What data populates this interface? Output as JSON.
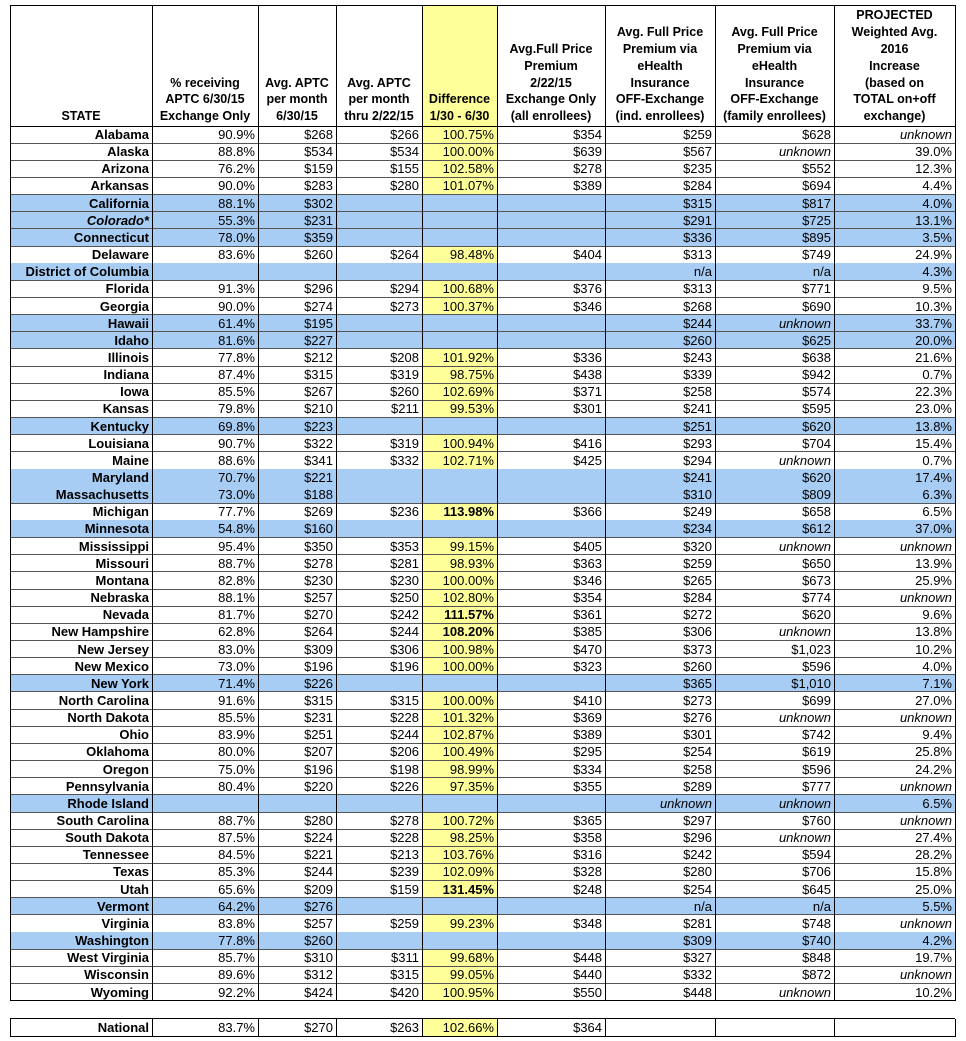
{
  "table": {
    "header": [
      [
        "STATE"
      ],
      [
        "% receiving",
        "APTC 6/30/15",
        "Exchange Only"
      ],
      [
        "Avg. APTC",
        "per month",
        "6/30/15"
      ],
      [
        "Avg. APTC",
        "per month",
        "thru 2/22/15"
      ],
      [
        "Difference",
        "1/30 - 6/30"
      ],
      [
        "Avg.Full Price",
        "Premium",
        "2/22/15",
        "Exchange Only",
        "(all enrollees)"
      ],
      [
        "Avg. Full Price",
        "Premium via",
        "eHealth",
        "Insurance",
        "OFF-Exchange",
        "(ind. enrollees)"
      ],
      [
        "Avg. Full Price",
        "Premium via",
        "eHealth",
        "Insurance",
        "OFF-Exchange",
        "(family enrollees)"
      ],
      [
        "PROJECTED",
        "Weighted Avg.",
        "2016",
        "Increase",
        "(based on",
        "TOTAL on+off",
        "exchange)"
      ]
    ],
    "rows": [
      {
        "cells": [
          "Alabama",
          "90.9%",
          "$268",
          "$266",
          "100.75%",
          "$354",
          "$259",
          "$628",
          {
            "text": "unknown",
            "italic": true
          }
        ]
      },
      {
        "cells": [
          "Alaska",
          "88.8%",
          "$534",
          "$534",
          "100.00%",
          "$639",
          "$567",
          {
            "text": "unknown",
            "italic": true
          },
          "39.0%"
        ]
      },
      {
        "cells": [
          "Arizona",
          "76.2%",
          "$159",
          "$155",
          "102.58%",
          "$278",
          "$235",
          "$552",
          "12.3%"
        ]
      },
      {
        "cells": [
          "Arkansas",
          "90.0%",
          "$283",
          "$280",
          "101.07%",
          "$389",
          "$284",
          "$694",
          "4.4%"
        ]
      },
      {
        "shaded": true,
        "cells": [
          "California",
          "88.1%",
          "$302",
          null,
          null,
          null,
          "$315",
          "$817",
          "4.0%"
        ]
      },
      {
        "shaded": true,
        "cells": [
          {
            "text": "Colorado*",
            "italic": true
          },
          "55.3%",
          "$231",
          null,
          null,
          null,
          "$291",
          "$725",
          "13.1%"
        ]
      },
      {
        "shaded": true,
        "cells": [
          "Connecticut",
          "78.0%",
          "$359",
          null,
          null,
          null,
          "$336",
          "$895",
          "3.5%"
        ]
      },
      {
        "cells": [
          "Delaware",
          "83.6%",
          "$260",
          "$264",
          "98.48%",
          "$404",
          "$313",
          "$749",
          "24.9%"
        ]
      },
      {
        "shaded": true,
        "cells": [
          "District of Columbia",
          null,
          null,
          null,
          null,
          null,
          "n/a",
          "n/a",
          "4.3%"
        ]
      },
      {
        "cells": [
          "Florida",
          "91.3%",
          "$296",
          "$294",
          "100.68%",
          "$376",
          "$313",
          "$771",
          "9.5%"
        ]
      },
      {
        "cells": [
          "Georgia",
          "90.0%",
          "$274",
          "$273",
          "100.37%",
          "$346",
          "$268",
          "$690",
          "10.3%"
        ]
      },
      {
        "shaded": true,
        "cells": [
          "Hawaii",
          "61.4%",
          "$195",
          null,
          null,
          null,
          "$244",
          {
            "text": "unknown",
            "italic": true
          },
          "33.7%"
        ]
      },
      {
        "shaded": true,
        "cells": [
          "Idaho",
          "81.6%",
          "$227",
          null,
          null,
          null,
          "$260",
          "$625",
          "20.0%"
        ]
      },
      {
        "cells": [
          "Illinois",
          "77.8%",
          "$212",
          "$208",
          "101.92%",
          "$336",
          "$243",
          "$638",
          "21.6%"
        ]
      },
      {
        "cells": [
          "Indiana",
          "87.4%",
          "$315",
          "$319",
          "98.75%",
          "$438",
          "$339",
          "$942",
          "0.7%"
        ]
      },
      {
        "cells": [
          "Iowa",
          "85.5%",
          "$267",
          "$260",
          "102.69%",
          "$371",
          "$258",
          "$574",
          "22.3%"
        ]
      },
      {
        "cells": [
          "Kansas",
          "79.8%",
          "$210",
          "$211",
          "99.53%",
          "$301",
          "$241",
          "$595",
          "23.0%"
        ]
      },
      {
        "shaded": true,
        "cells": [
          "Kentucky",
          "69.8%",
          "$223",
          null,
          null,
          null,
          "$251",
          "$620",
          "13.8%"
        ]
      },
      {
        "cells": [
          "Louisiana",
          "90.7%",
          "$322",
          "$319",
          "100.94%",
          "$416",
          "$293",
          "$704",
          "15.4%"
        ]
      },
      {
        "cells": [
          "Maine",
          "88.6%",
          "$341",
          "$332",
          "102.71%",
          "$425",
          "$294",
          {
            "text": "unknown",
            "italic": true
          },
          "0.7%"
        ]
      },
      {
        "shaded": true,
        "cells": [
          "Maryland",
          "70.7%",
          "$221",
          null,
          null,
          null,
          "$241",
          "$620",
          "17.4%"
        ]
      },
      {
        "shaded": true,
        "cells": [
          "Massachusetts",
          "73.0%",
          "$188",
          null,
          null,
          null,
          "$310",
          "$809",
          "6.3%"
        ]
      },
      {
        "cells": [
          "Michigan",
          "77.7%",
          "$269",
          "$236",
          {
            "text": "113.98%",
            "bold": true
          },
          "$366",
          "$249",
          "$658",
          "6.5%"
        ]
      },
      {
        "shaded": true,
        "cells": [
          "Minnesota",
          "54.8%",
          "$160",
          null,
          null,
          null,
          "$234",
          "$612",
          "37.0%"
        ]
      },
      {
        "cells": [
          "Mississippi",
          "95.4%",
          "$350",
          "$353",
          "99.15%",
          "$405",
          "$320",
          {
            "text": "unknown",
            "italic": true
          },
          {
            "text": "unknown",
            "italic": true
          }
        ]
      },
      {
        "cells": [
          "Missouri",
          "88.7%",
          "$278",
          "$281",
          "98.93%",
          "$363",
          "$259",
          "$650",
          "13.9%"
        ]
      },
      {
        "cells": [
          "Montana",
          "82.8%",
          "$230",
          "$230",
          "100.00%",
          "$346",
          "$265",
          "$673",
          "25.9%"
        ]
      },
      {
        "cells": [
          "Nebraska",
          "88.1%",
          "$257",
          "$250",
          "102.80%",
          "$354",
          "$284",
          "$774",
          {
            "text": "unknown",
            "italic": true
          }
        ]
      },
      {
        "cells": [
          "Nevada",
          "81.7%",
          "$270",
          "$242",
          {
            "text": "111.57%",
            "bold": true
          },
          "$361",
          "$272",
          "$620",
          "9.6%"
        ]
      },
      {
        "cells": [
          "New Hampshire",
          "62.8%",
          "$264",
          "$244",
          {
            "text": "108.20%",
            "bold": true
          },
          "$385",
          "$306",
          {
            "text": "unknown",
            "italic": true
          },
          "13.8%"
        ]
      },
      {
        "cells": [
          "New Jersey",
          "83.0%",
          "$309",
          "$306",
          "100.98%",
          "$470",
          "$373",
          "$1,023",
          "10.2%"
        ]
      },
      {
        "cells": [
          "New Mexico",
          "73.0%",
          "$196",
          "$196",
          "100.00%",
          "$323",
          "$260",
          "$596",
          "4.0%"
        ]
      },
      {
        "shaded": true,
        "cells": [
          "New York",
          "71.4%",
          "$226",
          null,
          null,
          null,
          "$365",
          "$1,010",
          "7.1%"
        ]
      },
      {
        "cells": [
          "North Carolina",
          "91.6%",
          "$315",
          "$315",
          "100.00%",
          "$410",
          "$273",
          "$699",
          "27.0%"
        ]
      },
      {
        "cells": [
          "North Dakota",
          "85.5%",
          "$231",
          "$228",
          "101.32%",
          "$369",
          "$276",
          {
            "text": "unknown",
            "italic": true
          },
          {
            "text": "unknown",
            "italic": true
          }
        ]
      },
      {
        "cells": [
          "Ohio",
          "83.9%",
          "$251",
          "$244",
          "102.87%",
          "$389",
          "$301",
          "$742",
          "9.4%"
        ]
      },
      {
        "cells": [
          "Oklahoma",
          "80.0%",
          "$207",
          "$206",
          "100.49%",
          "$295",
          "$254",
          "$619",
          "25.8%"
        ]
      },
      {
        "cells": [
          "Oregon",
          "75.0%",
          "$196",
          "$198",
          "98.99%",
          "$334",
          "$258",
          "$596",
          "24.2%"
        ]
      },
      {
        "cells": [
          "Pennsylvania",
          "80.4%",
          "$220",
          "$226",
          "97.35%",
          "$355",
          "$289",
          "$777",
          {
            "text": "unknown",
            "italic": true
          }
        ]
      },
      {
        "shaded": true,
        "cells": [
          "Rhode Island",
          null,
          null,
          null,
          null,
          null,
          {
            "text": "unknown",
            "italic": true
          },
          {
            "text": "unknown",
            "italic": true
          },
          "6.5%"
        ]
      },
      {
        "cells": [
          "South Carolina",
          "88.7%",
          "$280",
          "$278",
          "100.72%",
          "$365",
          "$297",
          "$760",
          {
            "text": "unknown",
            "italic": true
          }
        ]
      },
      {
        "cells": [
          "South Dakota",
          "87.5%",
          "$224",
          "$228",
          "98.25%",
          "$358",
          "$296",
          {
            "text": "unknown",
            "italic": true
          },
          "27.4%"
        ]
      },
      {
        "cells": [
          "Tennessee",
          "84.5%",
          "$221",
          "$213",
          "103.76%",
          "$316",
          "$242",
          "$594",
          "28.2%"
        ]
      },
      {
        "cells": [
          "Texas",
          "85.3%",
          "$244",
          "$239",
          "102.09%",
          "$328",
          "$280",
          "$706",
          "15.8%"
        ]
      },
      {
        "cells": [
          "Utah",
          "65.6%",
          "$209",
          "$159",
          {
            "text": "131.45%",
            "bold": true
          },
          "$248",
          "$254",
          "$645",
          "25.0%"
        ]
      },
      {
        "shaded": true,
        "cells": [
          "Vermont",
          "64.2%",
          "$276",
          null,
          null,
          null,
          "n/a",
          "n/a",
          "5.5%"
        ]
      },
      {
        "cells": [
          "Virginia",
          "83.8%",
          "$257",
          "$259",
          "99.23%",
          "$348",
          "$281",
          "$748",
          {
            "text": "unknown",
            "italic": true
          }
        ]
      },
      {
        "shaded": true,
        "cells": [
          "Washington",
          "77.8%",
          "$260",
          null,
          null,
          null,
          "$309",
          "$740",
          "4.2%"
        ]
      },
      {
        "cells": [
          "West Virginia",
          "85.7%",
          "$310",
          "$311",
          "99.68%",
          "$448",
          "$327",
          "$848",
          "19.7%"
        ]
      },
      {
        "cells": [
          "Wisconsin",
          "89.6%",
          "$312",
          "$315",
          "99.05%",
          "$440",
          "$332",
          "$872",
          {
            "text": "unknown",
            "italic": true
          }
        ]
      },
      {
        "cells": [
          "Wyoming",
          "92.2%",
          "$424",
          "$420",
          "100.95%",
          "$550",
          "$448",
          {
            "text": "unknown",
            "italic": true
          },
          "10.2%"
        ]
      }
    ],
    "footer": {
      "cells": [
        "National",
        "83.7%",
        "$270",
        "$263",
        "102.66%",
        "$364",
        null,
        null,
        null
      ]
    }
  }
}
